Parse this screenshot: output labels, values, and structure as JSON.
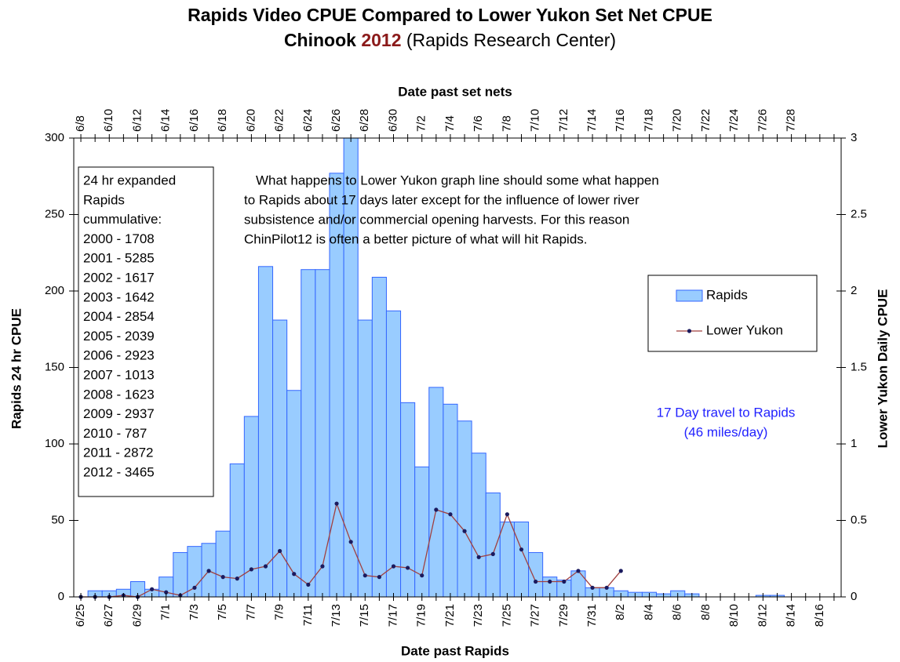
{
  "chart_data": {
    "type": "bar",
    "title": "Rapids Video CPUE Compared to Lower Yukon Set Net CPUE",
    "subtitle": {
      "species": "Chinook",
      "year": "2012",
      "source": "(Rapids Research Center)"
    },
    "x_label": "Date past Rapids",
    "top_x_label": "Date past set nets",
    "y_label": "Rapids 24 hr CPUE",
    "y2_label": "Lower Yukon Daily CPUE",
    "categories": [
      "6/25",
      null,
      "6/27",
      null,
      "6/29",
      null,
      "7/1",
      null,
      "7/3",
      null,
      "7/5",
      null,
      "7/7",
      null,
      "7/9",
      null,
      "7/11",
      null,
      "7/13",
      null,
      "7/15",
      null,
      "7/17",
      null,
      "7/19",
      null,
      "7/21",
      null,
      "7/23",
      null,
      "7/25",
      null,
      "7/27",
      null,
      "7/29",
      null,
      "7/31",
      null,
      "8/2",
      null,
      "8/4",
      null,
      "8/6",
      null,
      "8/8",
      null,
      "8/10",
      null,
      "8/12",
      null,
      "8/14",
      null,
      "8/16",
      null
    ],
    "top_categories": [
      "6/8",
      null,
      "6/10",
      null,
      "6/12",
      null,
      "6/14",
      null,
      "6/16",
      null,
      "6/18",
      null,
      "6/20",
      null,
      "6/22",
      null,
      "6/24",
      null,
      "6/26",
      null,
      "6/28",
      null,
      "6/30",
      null,
      "7/2",
      null,
      "7/4",
      null,
      "7/6",
      null,
      "7/8",
      null,
      "7/10",
      null,
      "7/12",
      null,
      "7/14",
      null,
      "7/16",
      null,
      "7/18",
      null,
      "7/20",
      null,
      "7/22",
      null,
      "7/24",
      null,
      "7/26",
      null,
      "7/28",
      null,
      null,
      null
    ],
    "series": [
      {
        "name": "Rapids",
        "type": "bar",
        "color": "#99ccff",
        "edge_color": "#3366ff",
        "values": [
          0,
          4,
          4,
          5,
          10,
          5,
          13,
          29,
          33,
          35,
          43,
          87,
          118,
          216,
          181,
          135,
          214,
          214,
          277,
          300,
          181,
          209,
          187,
          127,
          85,
          137,
          126,
          115,
          94,
          68,
          49,
          49,
          29,
          13,
          11,
          17,
          6,
          6,
          4,
          3,
          3,
          2,
          4,
          2,
          0,
          0,
          0,
          0,
          1,
          1,
          0,
          0,
          0,
          0
        ]
      },
      {
        "name": "Lower Yukon",
        "type": "line",
        "axis": "y2",
        "color": "#a0403f",
        "marker_color": "#1a1a5e",
        "values": [
          0,
          0,
          0,
          0.01,
          0,
          0.05,
          0.03,
          0.01,
          0.06,
          0.17,
          0.13,
          0.12,
          0.18,
          0.2,
          0.3,
          0.15,
          0.08,
          0.2,
          0.61,
          0.36,
          0.14,
          0.13,
          0.2,
          0.19,
          0.14,
          0.57,
          0.54,
          0.43,
          0.26,
          0.28,
          0.54,
          0.31,
          0.1,
          0.1,
          0.1,
          0.17,
          0.06,
          0.06,
          0.17,
          null,
          null,
          null,
          null,
          null,
          null,
          null,
          null,
          null,
          null,
          null,
          null,
          null,
          null,
          null
        ]
      }
    ],
    "ylim": [
      0,
      300
    ],
    "yticks": [
      0,
      50,
      100,
      150,
      200,
      250,
      300
    ],
    "y2lim": [
      0,
      3
    ],
    "y2ticks": [
      0,
      0.5,
      1,
      1.5,
      2,
      2.5,
      3
    ],
    "grid": false,
    "legend": "right",
    "cumulative_box": [
      "24 hr expanded",
      "Rapids",
      "cummulative:",
      "2000 - 1708",
      "2001 - 5285",
      "2002 - 1617",
      "2003 - 1642",
      "2004 - 2854",
      "2005 - 2039",
      "2006 - 2923",
      "2007 - 1013",
      "2008 - 1623",
      "2009 - 2937",
      "2010 - 787",
      "2011 - 2872",
      "2012 - 3465"
    ],
    "note": [
      "What happens to Lower Yukon graph line should some what happen",
      "to Rapids about 17 days later except for the influence of lower river",
      "subsistence and/or commercial opening harvests. For this reason",
      "ChinPilot12 is often a better picture of what will hit Rapids."
    ],
    "travel_note": [
      "17 Day travel to Rapids",
      "(46 miles/day)"
    ],
    "travel_note_color": "#2222ff"
  }
}
